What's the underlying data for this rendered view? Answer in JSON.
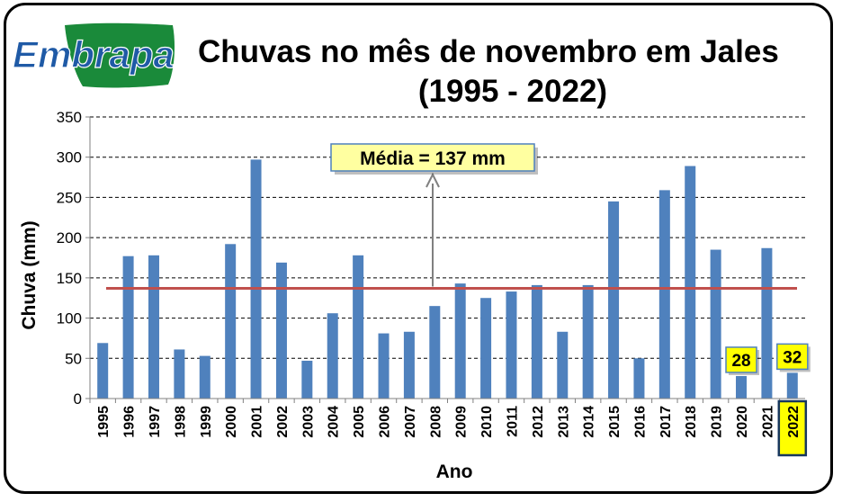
{
  "logo_text": "Embrapa",
  "chart_data": {
    "type": "bar",
    "title": "Chuvas no mês de novembro em Jales",
    "subtitle": "(1995 - 2022)",
    "xlabel": "Ano",
    "ylabel": "Chuva (mm)",
    "ylim": [
      0,
      350
    ],
    "yticks": [
      0,
      50,
      100,
      150,
      200,
      250,
      300,
      350
    ],
    "grid": true,
    "categories": [
      "1995",
      "1996",
      "1997",
      "1998",
      "1999",
      "2000",
      "2001",
      "2002",
      "2003",
      "2004",
      "2005",
      "2006",
      "2007",
      "2008",
      "2009",
      "2010",
      "2011",
      "2012",
      "2013",
      "2014",
      "2015",
      "2016",
      "2017",
      "2018",
      "2019",
      "2020",
      "2021",
      "2022"
    ],
    "values": [
      69,
      177,
      178,
      61,
      53,
      192,
      297,
      169,
      47,
      106,
      178,
      81,
      83,
      115,
      143,
      125,
      133,
      141,
      83,
      141,
      245,
      50,
      259,
      289,
      185,
      28,
      187,
      32
    ],
    "mean": 137,
    "mean_label": "Média = 137 mm",
    "highlighted": [
      {
        "category": "2020",
        "label": "28"
      },
      {
        "category": "2022",
        "label": "32"
      }
    ],
    "colors": {
      "bar": "#4F81BD",
      "mean_line": "#C0504D",
      "highlight_fill": "#FFFF00",
      "frame": "#000000"
    }
  }
}
